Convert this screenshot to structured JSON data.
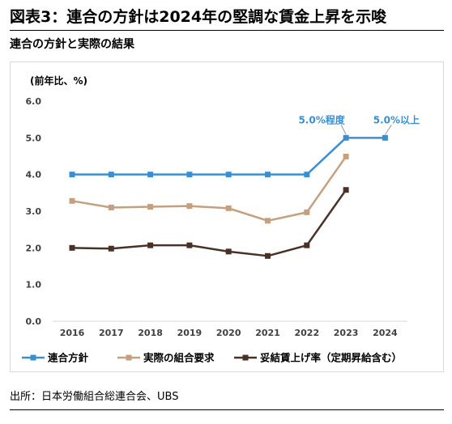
{
  "title": "図表3：連合の方針は2024年の堅調な賃金上昇を示唆",
  "subtitle": "連合の方針と実際の結果",
  "source": "出所：日本労働組合総連合会、UBS",
  "colors": {
    "blue": "#3b8fd0",
    "tan": "#c4a07e",
    "dark": "#4a3128",
    "annot": "#3b8fd0",
    "axis": "#d9d9d9"
  },
  "chart_data": {
    "type": "line",
    "ylabel": "(前年比、%)",
    "ylim": [
      0.0,
      6.0
    ],
    "yticks": [
      "0.0",
      "1.0",
      "2.0",
      "3.0",
      "4.0",
      "5.0",
      "6.0"
    ],
    "categories": [
      "2016",
      "2017",
      "2018",
      "2019",
      "2020",
      "2021",
      "2022",
      "2023",
      "2024"
    ],
    "series": [
      {
        "name": "連合方針",
        "color": "#3b8fd0",
        "marker": "square",
        "values": [
          4.0,
          4.0,
          4.0,
          4.0,
          4.0,
          4.0,
          4.0,
          5.0,
          5.0
        ]
      },
      {
        "name": "実際の組合要求",
        "color": "#c4a07e",
        "marker": "square",
        "values": [
          3.28,
          3.1,
          3.12,
          3.14,
          3.08,
          2.74,
          2.97,
          4.49,
          null
        ]
      },
      {
        "name": "妥結賃上げ率（定期昇給含む）",
        "color": "#4a3128",
        "marker": "square",
        "values": [
          2.0,
          1.98,
          2.07,
          2.07,
          1.9,
          1.78,
          2.07,
          3.58,
          null
        ]
      }
    ],
    "annotations": [
      {
        "text": "5.0%程度",
        "category": "2023",
        "value": 5.0
      },
      {
        "text": "5.0%以上",
        "category": "2024",
        "value": 5.0
      }
    ],
    "legend": "bottom"
  }
}
